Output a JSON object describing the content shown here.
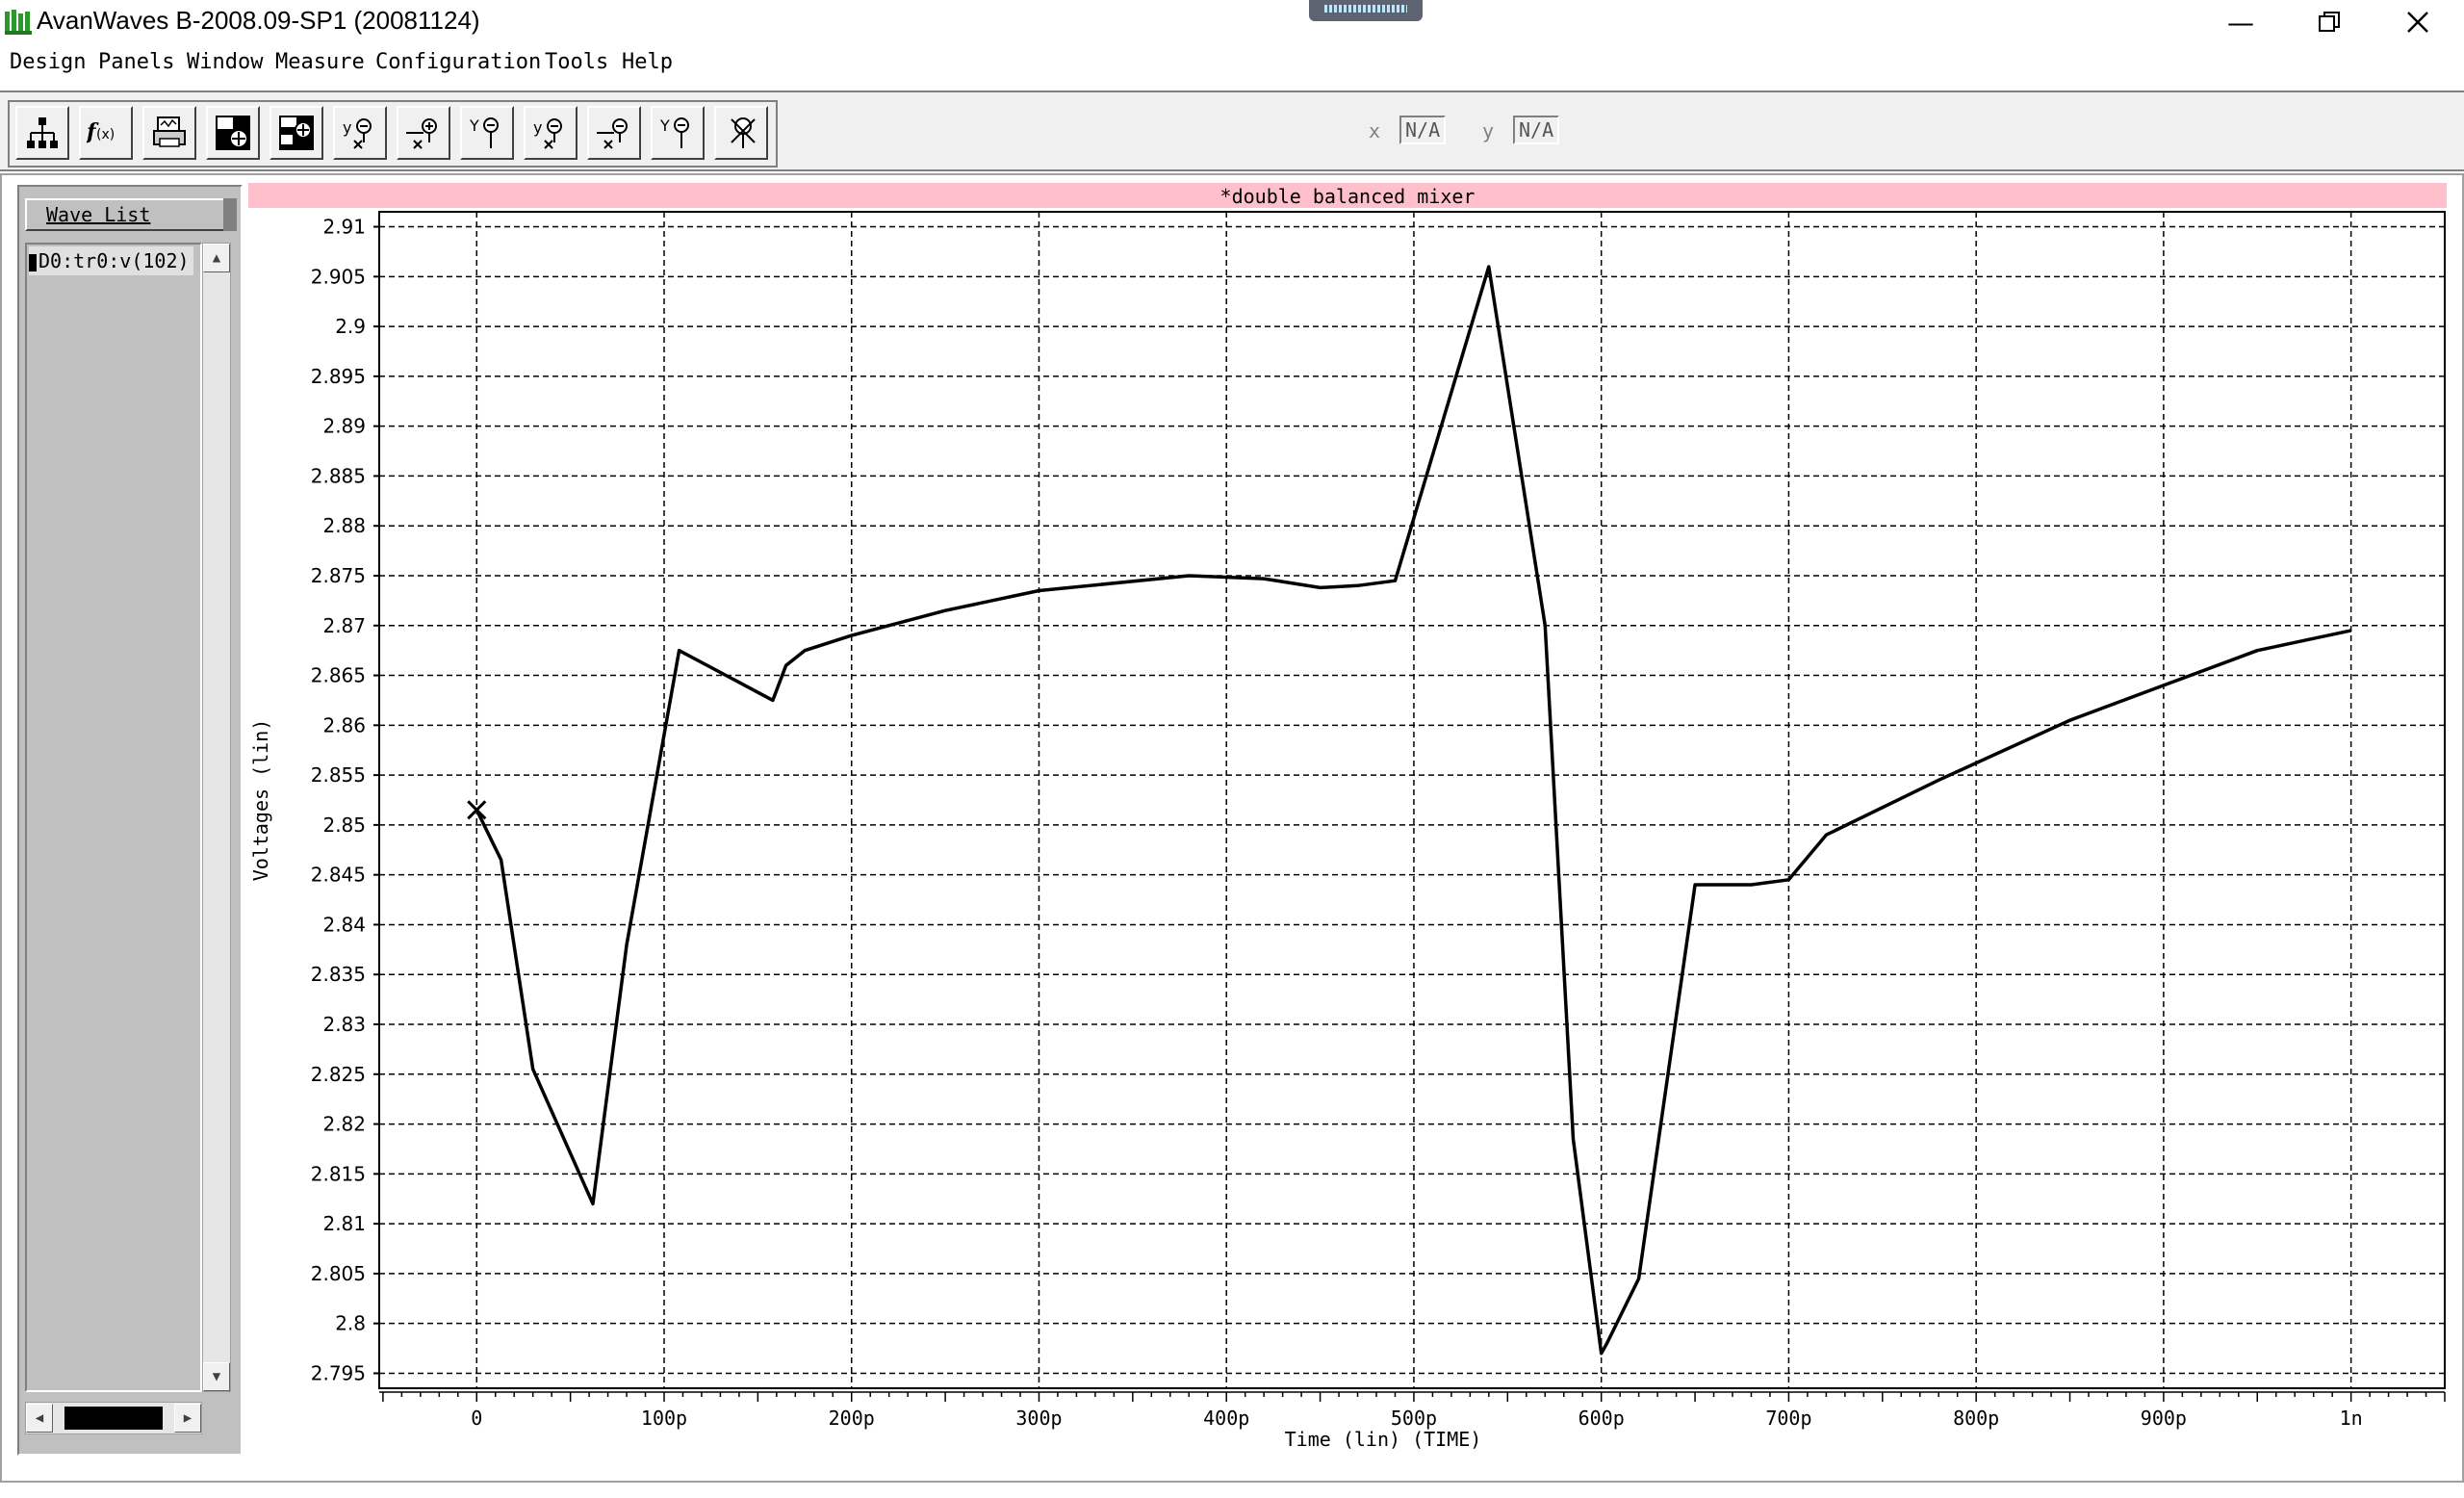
{
  "window": {
    "title": "AvanWaves B-2008.09-SP1 (20081124)",
    "app_icon": "avanwaves-icon",
    "controls": [
      "minimize-icon",
      "restore-icon",
      "close-icon"
    ]
  },
  "menu": {
    "items": [
      "Design",
      "Panels",
      "Window",
      "Measure",
      "Configuration",
      "Tools",
      "Help"
    ]
  },
  "toolbar": {
    "tools": [
      "hierarchy-icon",
      "function-icon",
      "print-panel-icon",
      "panel-add-icon",
      "panel-config-icon",
      "delete-marker-icon",
      "delta-marker-icon",
      "point-marker-icon",
      "delete-marker-icon",
      "delta-marker-icon",
      "point-marker-icon",
      "clear-marker-icon"
    ],
    "x_label": "x",
    "x_value": "N/A",
    "y_label": "y",
    "y_value": "N/A"
  },
  "wave_list": {
    "header": "Wave List",
    "items": [
      "D0:tr0:v(102)"
    ],
    "item_color": "#000000"
  },
  "plot": {
    "title": "*double balanced mixer",
    "title_bg": "#ffc0cb",
    "start_marker": "x-marker-icon"
  },
  "chart_data": {
    "type": "line",
    "title": "*double balanced mixer",
    "xlabel": "Time (lin) (TIME)",
    "ylabel": "Voltages (lin)",
    "x_ticks": [
      "0",
      "100p",
      "200p",
      "300p",
      "400p",
      "500p",
      "600p",
      "700p",
      "800p",
      "900p",
      "1n"
    ],
    "y_ticks": [
      "2.795",
      "2.8",
      "2.805",
      "2.81",
      "2.815",
      "2.82",
      "2.825",
      "2.83",
      "2.835",
      "2.84",
      "2.845",
      "2.85",
      "2.855",
      "2.86",
      "2.865",
      "2.87",
      "2.875",
      "2.88",
      "2.885",
      "2.89",
      "2.895",
      "2.9",
      "2.905",
      "2.91"
    ],
    "xlim": [
      -52,
      1050
    ],
    "ylim": [
      2.7935,
      2.9115
    ],
    "grid": true,
    "grid_style": "dashed",
    "series": [
      {
        "name": "D0:tr0:v(102)",
        "color": "#000000",
        "x": [
          0,
          13,
          30,
          62,
          80,
          108,
          158,
          165,
          175,
          200,
          250,
          300,
          380,
          420,
          450,
          470,
          490,
          540,
          570,
          585,
          600,
          603,
          620,
          650,
          680,
          700,
          720,
          780,
          850,
          900,
          950,
          1000
        ],
        "y": [
          2.8515,
          2.8465,
          2.8255,
          2.812,
          2.838,
          2.8675,
          2.8625,
          2.866,
          2.8675,
          2.869,
          2.8715,
          2.8735,
          2.875,
          2.8747,
          2.8738,
          2.874,
          2.8745,
          2.906,
          2.87,
          2.8185,
          2.797,
          2.798,
          2.8045,
          2.844,
          2.844,
          2.8445,
          2.849,
          2.8545,
          2.8605,
          2.864,
          2.8675,
          2.8695
        ]
      }
    ]
  }
}
